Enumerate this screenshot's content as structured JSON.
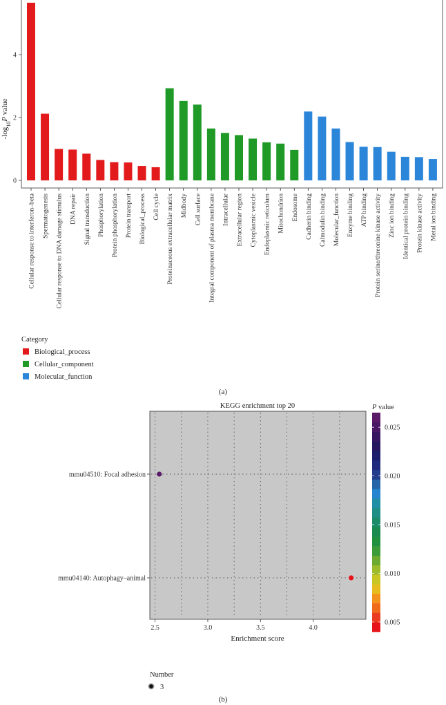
{
  "chart_data": [
    {
      "type": "bar",
      "panel_label": "(a)",
      "ylabel_main": "-log",
      "ylabel_sub": "10",
      "ylabel_italic": "P",
      "ylabel_suffix": " value",
      "ylim": [
        0,
        6.1
      ],
      "yticks": [
        0,
        2,
        4
      ],
      "categories": [
        "Cellular response to interferon–beta",
        "Spermatogenesis",
        "Cellular response to DNA damage stimulus",
        "DNA repair",
        "Signal transduction",
        "Phosphorylation",
        "Protein phosphorylation",
        "Protein transport",
        "Biological_process",
        "Cell cycle",
        "Proteinaceous extracellular matrix",
        "Midbody",
        "Cell surface",
        "Integral component of plasma membrane",
        "Intracellular",
        "Extracellular region",
        "Cytoplasmic vesicle",
        "Endoplasmic reticulum",
        "Mitochondrion",
        "Endosome",
        "Cadherin binding",
        "Calmodulin binding",
        "Molecular_function",
        "Enzyme binding",
        "ATP binding",
        "Protein serine/threonine kinase activity",
        "Zinc ion binding",
        "Identical protein binding",
        "Protein kinase activity",
        "Metal ion binding"
      ],
      "values": [
        5.65,
        2.12,
        1.0,
        0.98,
        0.85,
        0.65,
        0.58,
        0.57,
        0.46,
        0.42,
        2.93,
        2.53,
        2.41,
        1.65,
        1.51,
        1.44,
        1.33,
        1.21,
        1.17,
        0.97,
        2.19,
        2.03,
        1.65,
        1.22,
        1.07,
        1.06,
        0.91,
        0.75,
        0.74,
        0.68
      ],
      "groups": [
        "Biological_process",
        "Biological_process",
        "Biological_process",
        "Biological_process",
        "Biological_process",
        "Biological_process",
        "Biological_process",
        "Biological_process",
        "Biological_process",
        "Biological_process",
        "Cellular_component",
        "Cellular_component",
        "Cellular_component",
        "Cellular_component",
        "Cellular_component",
        "Cellular_component",
        "Cellular_component",
        "Cellular_component",
        "Cellular_component",
        "Cellular_component",
        "Molecular_function",
        "Molecular_function",
        "Molecular_function",
        "Molecular_function",
        "Molecular_function",
        "Molecular_function",
        "Molecular_function",
        "Molecular_function",
        "Molecular_function",
        "Molecular_function"
      ],
      "legend": {
        "title": "Category",
        "entries": [
          {
            "label": "Biological_process",
            "color": "#e31a1c"
          },
          {
            "label": "Cellular_component",
            "color": "#1f9a27"
          },
          {
            "label": "Molecular_function",
            "color": "#2b86d9"
          }
        ]
      }
    },
    {
      "type": "scatter",
      "panel_label": "(b)",
      "title": "KEGG enrichment top 20",
      "xlabel": "Enrichment score",
      "xlim": [
        2.45,
        4.5
      ],
      "xticks": [
        2.5,
        3.0,
        3.5,
        4.0
      ],
      "xtick_labels": [
        "2.5",
        "3.0",
        "3.5",
        "4.0"
      ],
      "x_minor_gridlines": [
        2.5,
        2.75,
        3.0,
        3.25,
        3.5,
        3.75,
        4.0,
        4.25
      ],
      "categories": [
        "mmu04510: Focal adhesion",
        "mmu04140: Autophagy–animal"
      ],
      "points": [
        {
          "label": "mmu04510: Focal adhesion",
          "x": 2.54,
          "p_value": 0.026,
          "number": 3
        },
        {
          "label": "mmu04140: Autophagy–animal",
          "x": 4.36,
          "p_value": 0.0045,
          "number": 3
        }
      ],
      "colorbar": {
        "title_italic": "P",
        "title_suffix": " value",
        "range": [
          0.004,
          0.0265
        ],
        "ticks": [
          0.005,
          0.01,
          0.015,
          0.02,
          0.025
        ],
        "tick_labels": [
          "0.005",
          "0.010",
          "0.015",
          "0.020",
          "0.025"
        ],
        "colors": [
          "#e6141a",
          "#ea3a1f",
          "#f06a1c",
          "#f3921c",
          "#e7bd1e",
          "#c9c624",
          "#9ebc2a",
          "#6cab2f",
          "#3c9c3a",
          "#21913f",
          "#1a8a4f",
          "#1b8c67",
          "#1e8f84",
          "#1f8fa6",
          "#2385cf",
          "#2565a8",
          "#243e8c",
          "#1f2a7e",
          "#1d1d6d",
          "#25165f",
          "#371660",
          "#4a1764",
          "#5a1a68"
        ]
      },
      "size_legend": {
        "title": "Number",
        "entries": [
          {
            "label": "3"
          }
        ]
      }
    }
  ]
}
